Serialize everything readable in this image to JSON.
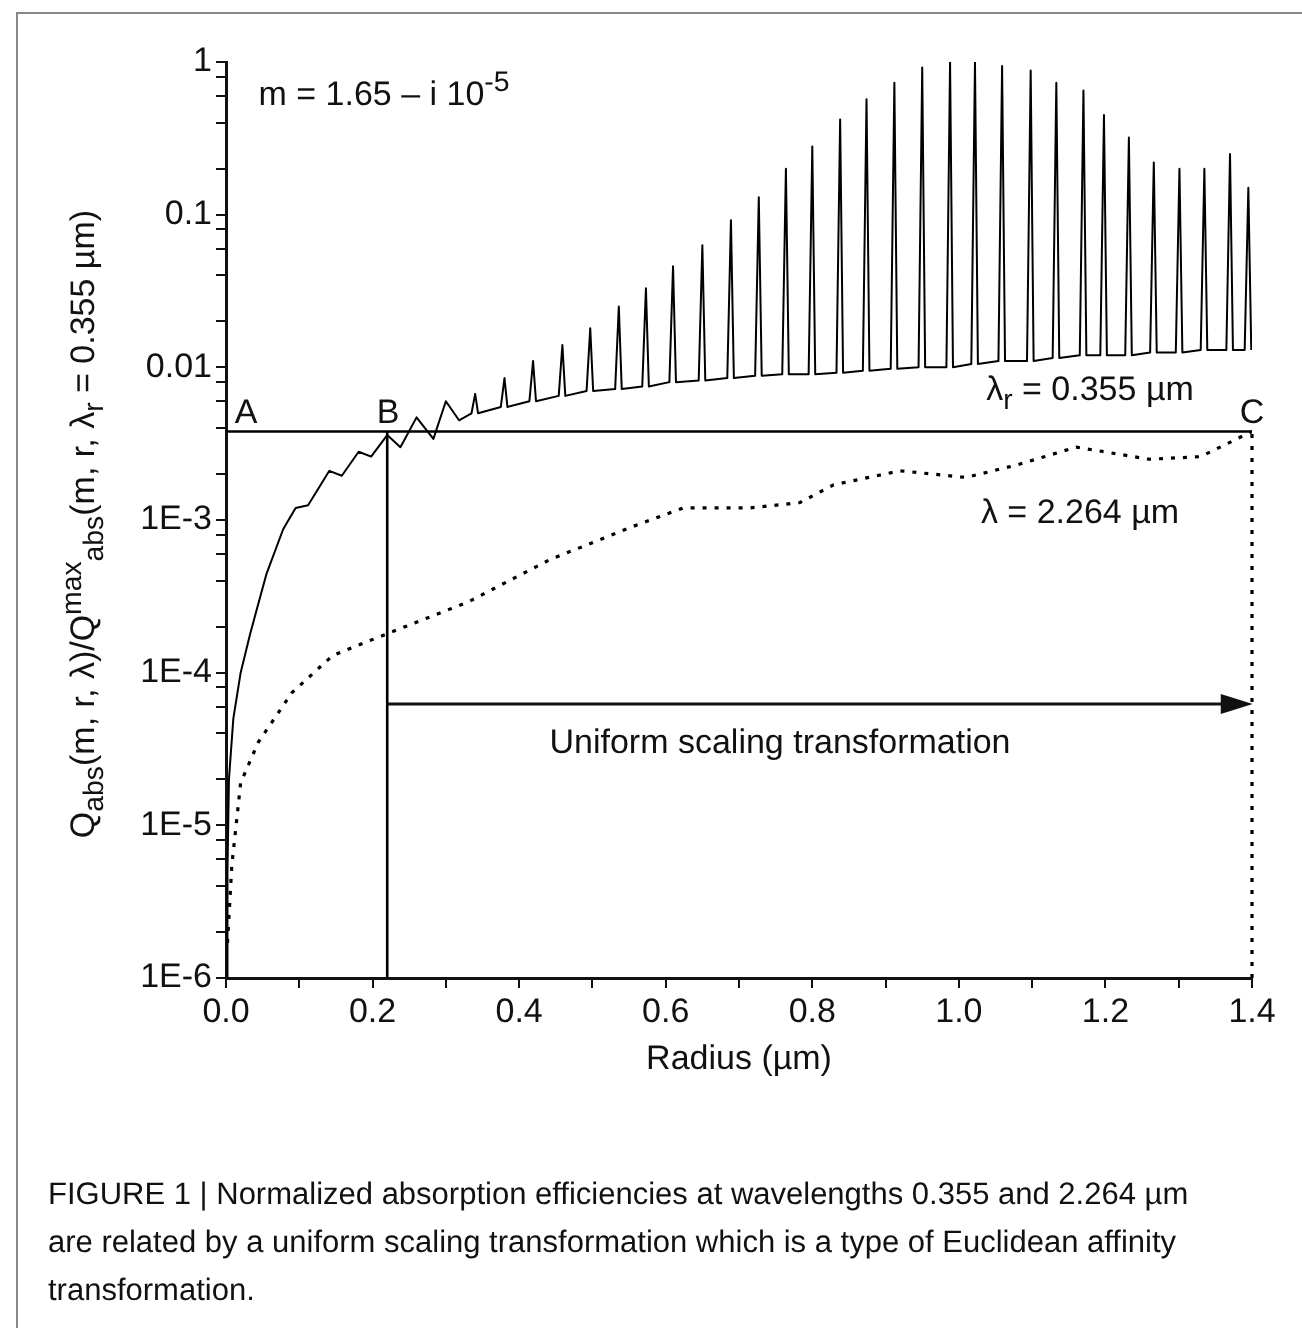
{
  "chart_data": {
    "type": "line",
    "xlabel": "Radius (µm)",
    "ylabel": "Q$_{abs}$(m, r, λ)/Q$^{max}$$_{abs}$(m, r, λ$_{r}$ = 0.355 µm)",
    "xlim": [
      0,
      1.4
    ],
    "xticks": [
      {
        "value": 0,
        "label": "0.0"
      },
      {
        "value": 0.1,
        "label": null
      },
      {
        "value": 0.2,
        "label": "0.2"
      },
      {
        "value": 0.3,
        "label": null
      },
      {
        "value": 0.4,
        "label": "0.4"
      },
      {
        "value": 0.5,
        "label": null
      },
      {
        "value": 0.6,
        "label": "0.6"
      },
      {
        "value": 0.7,
        "label": null
      },
      {
        "value": 0.8,
        "label": "0.8"
      },
      {
        "value": 0.9,
        "label": null
      },
      {
        "value": 1,
        "label": "1.0"
      },
      {
        "value": 1.1,
        "label": null
      },
      {
        "value": 1.2,
        "label": "1.2"
      },
      {
        "value": 1.3,
        "label": null
      },
      {
        "value": 1.4,
        "label": "1.4"
      }
    ],
    "ylim": [
      1e-06,
      1
    ],
    "yticks": [
      {
        "value": 1e-06,
        "label": "1E-6"
      },
      {
        "value": 2e-06,
        "label": null
      },
      {
        "value": 4e-06,
        "label": null
      },
      {
        "value": 6e-06,
        "label": null
      },
      {
        "value": 8e-06,
        "label": null
      },
      {
        "value": 1e-05,
        "label": "1E-5"
      },
      {
        "value": 2e-05,
        "label": null
      },
      {
        "value": 4e-05,
        "label": null
      },
      {
        "value": 6e-05,
        "label": null
      },
      {
        "value": 8e-05,
        "label": null
      },
      {
        "value": 0.0001,
        "label": "1E-4"
      },
      {
        "value": 0.0002,
        "label": null
      },
      {
        "value": 0.0004,
        "label": null
      },
      {
        "value": 0.0006,
        "label": null
      },
      {
        "value": 0.0008,
        "label": null
      },
      {
        "value": 0.001,
        "label": "1E-3"
      },
      {
        "value": 0.002,
        "label": null
      },
      {
        "value": 0.004,
        "label": null
      },
      {
        "value": 0.006,
        "label": null
      },
      {
        "value": 0.008,
        "label": null
      },
      0.01,
      {
        "value": 0.02,
        "label": null
      },
      {
        "value": 0.04,
        "label": null
      },
      {
        "value": 0.06,
        "label": null
      },
      {
        "value": 0.08,
        "label": null
      },
      0.1,
      {
        "value": 0.2,
        "label": null
      },
      {
        "value": 0.4,
        "label": null
      },
      {
        "value": 0.6,
        "label": null
      },
      {
        "value": 0.8,
        "label": null
      },
      1
    ],
    "log": "y",
    "legend": false,
    "marker": "none",
    "series": [
      {
        "color": "#000000",
        "line_style": "solid",
        "x": [
          0.001,
          0.002,
          0.004,
          0.01,
          0.02,
          0.033,
          0.055,
          0.078,
          0.095,
          0.112,
          0.141,
          0.158,
          0.181,
          0.198,
          0.22,
          0.238,
          0.26,
          0.283,
          0.3,
          0.318,
          0.335,
          0.34,
          0.344,
          0.375,
          0.38,
          0.384,
          0.414,
          0.419,
          0.423,
          0.454,
          0.459,
          0.463,
          0.492,
          0.497,
          0.501,
          0.531,
          0.536,
          0.54,
          0.568,
          0.573,
          0.577,
          0.605,
          0.61,
          0.614,
          0.645,
          0.65,
          0.654,
          0.684,
          0.689,
          0.693,
          0.722,
          0.727,
          0.731,
          0.759,
          0.764,
          0.768,
          0.795,
          0.8,
          0.804,
          0.833,
          0.838,
          0.842,
          0.869,
          0.874,
          0.878,
          0.907,
          0.912,
          0.916,
          0.945,
          0.95,
          0.954,
          0.983,
          0.988,
          0.992,
          1.017,
          1.022,
          1.026,
          1.054,
          1.059,
          1.063,
          1.093,
          1.098,
          1.102,
          1.128,
          1.133,
          1.137,
          1.165,
          1.17,
          1.174,
          1.193,
          1.198,
          1.202,
          1.227,
          1.232,
          1.236,
          1.261,
          1.266,
          1.27,
          1.296,
          1.301,
          1.305,
          1.33,
          1.335,
          1.339,
          1.365,
          1.37,
          1.374,
          1.39,
          1.395,
          1.399
        ],
        "values": [
          1e-06,
          5e-06,
          2e-05,
          5e-05,
          0.0001,
          0.00018,
          0.00044,
          0.00087,
          0.0012,
          0.00125,
          0.0021,
          0.00195,
          0.0028,
          0.0026,
          0.0036,
          0.003,
          0.0047,
          0.0034,
          0.006,
          0.0045,
          0.005,
          0.0067,
          0.005,
          0.0055,
          0.0085,
          0.0055,
          0.006,
          0.011,
          0.006,
          0.0065,
          0.014,
          0.0065,
          0.007,
          0.018,
          0.007,
          0.0072,
          0.025,
          0.0072,
          0.0075,
          0.033,
          0.0075,
          0.008,
          0.046,
          0.008,
          0.0082,
          0.063,
          0.0082,
          0.0085,
          0.092,
          0.0085,
          0.0088,
          0.13,
          0.0088,
          0.009,
          0.2,
          0.009,
          0.009,
          0.28,
          0.009,
          0.0092,
          0.42,
          0.0092,
          0.0095,
          0.57,
          0.0095,
          0.0098,
          0.73,
          0.0098,
          0.01,
          0.92,
          0.01,
          0.01,
          1,
          0.01,
          0.0105,
          1,
          0.0105,
          0.011,
          0.94,
          0.011,
          0.011,
          0.88,
          0.011,
          0.0115,
          0.73,
          0.0115,
          0.012,
          0.65,
          0.012,
          0.012,
          0.45,
          0.012,
          0.012,
          0.32,
          0.012,
          0.0125,
          0.22,
          0.0125,
          0.0125,
          0.2,
          0.0125,
          0.013,
          0.2,
          0.013,
          0.013,
          0.25,
          0.013,
          0.013,
          0.15,
          0.013
        ]
      },
      {
        "color": "#000000",
        "line_style": "dotted",
        "x": [
          0.002,
          0.008,
          0.02,
          0.044,
          0.09,
          0.146,
          0.22,
          0.33,
          0.442,
          0.556,
          0.624,
          0.715,
          0.783,
          0.829,
          0.92,
          1.01,
          1.08,
          1.16,
          1.26,
          1.33,
          1.4
        ],
        "values": [
          1.7e-06,
          5.5e-06,
          1.9e-05,
          3.5e-05,
          7.4e-05,
          0.00013,
          0.00018,
          0.00029,
          0.00055,
          0.00091,
          0.0012,
          0.0012,
          0.0013,
          0.0017,
          0.0021,
          0.0019,
          0.0023,
          0.003,
          0.0025,
          0.0026,
          0.0038
        ]
      }
    ],
    "ref_lines": [
      {
        "axis": "y",
        "value": 0.0038,
        "line_style": "solid"
      },
      {
        "axis": "x",
        "value": 0.22,
        "line_style": "solid"
      },
      {
        "axis": "x",
        "value": 1.4,
        "line_style": "dotted"
      }
    ],
    "annotations": [
      "Uniform scaling transformation",
      "m = 1.65 – i 10$^{-5}$",
      "A",
      "B",
      "C",
      "λ$_{r}$ = 0.355 µm",
      "λ = 2.264 µm",
      "FIGURE 1 | Normalized absorption efficiencies at wavelengths 0.355 and 2.264 µm are related by a uniform scaling transformation which is a type of Euclidean affinity transformation."
    ]
  }
}
